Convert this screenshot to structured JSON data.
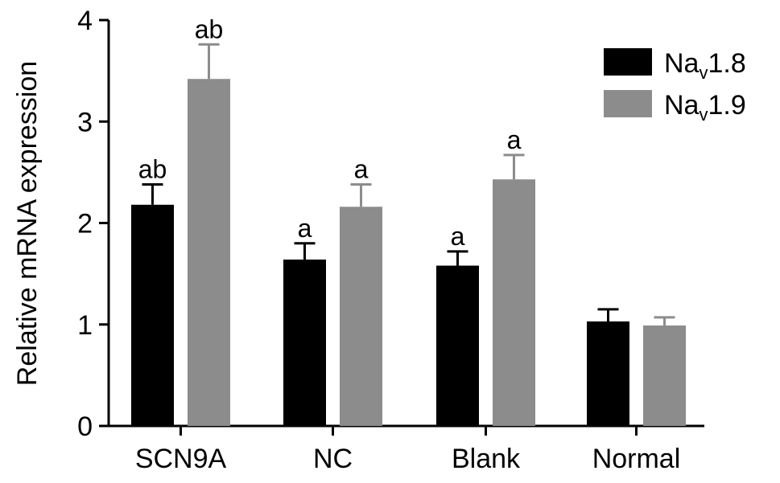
{
  "chart_data": {
    "type": "bar",
    "title": "",
    "xlabel": "",
    "ylabel": "Relative mRNA expression",
    "ylim": [
      0,
      4
    ],
    "yticks": [
      "0",
      "1",
      "2",
      "3",
      "4"
    ],
    "categories": [
      "SCN9A",
      "NC",
      "Blank",
      "Normal"
    ],
    "series": [
      {
        "name": "Na",
        "sub": "v",
        "suffix": "1.8",
        "color": "#000000",
        "values": [
          2.18,
          1.64,
          1.58,
          1.03
        ],
        "errors": [
          0.2,
          0.16,
          0.14,
          0.12
        ],
        "annotations": [
          "ab",
          "a",
          "a",
          ""
        ]
      },
      {
        "name": "Na",
        "sub": "v",
        "suffix": "1.9",
        "color": "#8c8c8c",
        "values": [
          3.42,
          2.16,
          2.43,
          0.99
        ],
        "errors": [
          0.34,
          0.22,
          0.24,
          0.08
        ],
        "annotations": [
          "ab",
          "a",
          "a",
          ""
        ]
      }
    ],
    "legend_placement": "top-right",
    "grid": false
  }
}
